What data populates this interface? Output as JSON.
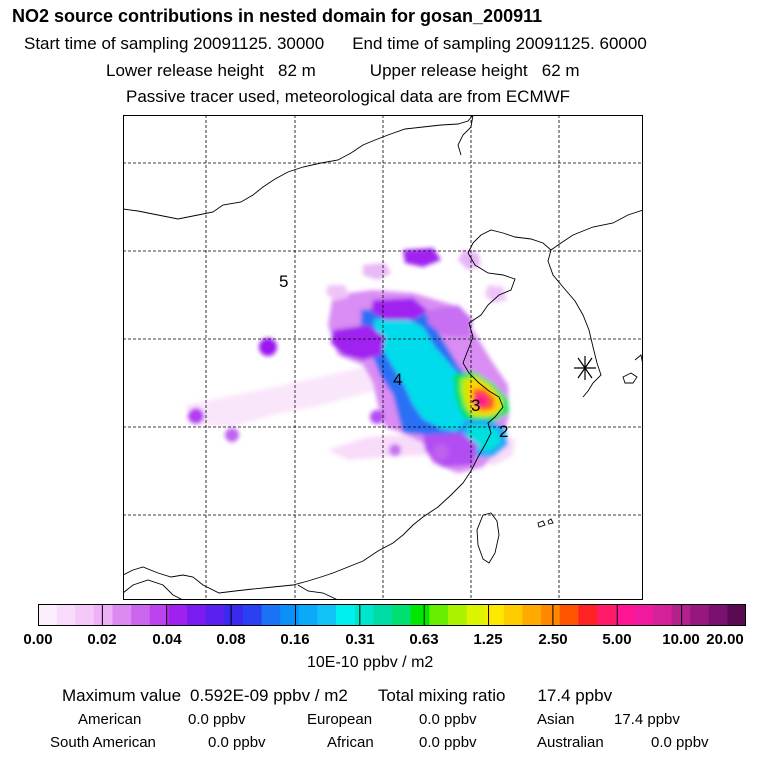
{
  "header": {
    "title": "NO2 source contributions in nested domain for gosan_200911",
    "start_time_label": "Start time of sampling 20091125. 30000",
    "end_time_label": "End time of sampling 20091125. 60000",
    "lower_release_label": "Lower release height   82 m",
    "upper_release_label": "Upper release height   62 m",
    "info": "Passive tracer used, meteorological data are from ECMWF"
  },
  "map": {
    "site_labels": [
      "5",
      "4",
      "3",
      "2"
    ],
    "site_marker": "asterisk-receptor-icon"
  },
  "colorbar": {
    "ticks": [
      "0.00",
      "0.02",
      "0.04",
      "0.08",
      "0.16",
      "0.31",
      "0.63",
      "1.25",
      "2.50",
      "5.00",
      "10.00",
      "20.00"
    ],
    "colors": [
      "#fdeefe",
      "#f9dcfb",
      "#f4c8f8",
      "#eeb0f6",
      "#dc8af2",
      "#cc66ee",
      "#bb44ee",
      "#a020f0",
      "#7a1cf0",
      "#5a20f0",
      "#3a2af0",
      "#2a40f2",
      "#1a72f4",
      "#0a90f6",
      "#0aaaf8",
      "#10c4fa",
      "#00f0f0",
      "#00e6cc",
      "#00dca6",
      "#00e070",
      "#00e800",
      "#66ee00",
      "#aaf200",
      "#dcf400",
      "#ffe800",
      "#ffcc00",
      "#ffaa00",
      "#ff8800",
      "#ff5500",
      "#ff2222",
      "#ff1a6a",
      "#ff1493",
      "#f01aa0",
      "#d6209a",
      "#b4208c",
      "#96187e",
      "#7a1070",
      "#5a0a50"
    ],
    "unit": "10E-10 ppbv / m2"
  },
  "summary": {
    "max_label": "Maximum value",
    "max_value": "0.592E-09 ppbv / m2",
    "total_label": "Total mixing ratio",
    "total_value": "17.4 ppbv",
    "regions": [
      {
        "name": "American",
        "value": "0.0 ppbv"
      },
      {
        "name": "European",
        "value": "0.0 ppbv"
      },
      {
        "name": "Asian",
        "value": "17.4 ppbv"
      },
      {
        "name": "South American",
        "value": "0.0 ppbv"
      },
      {
        "name": "African",
        "value": "0.0 ppbv"
      },
      {
        "name": "Australian",
        "value": "0.0 ppbv"
      }
    ]
  }
}
